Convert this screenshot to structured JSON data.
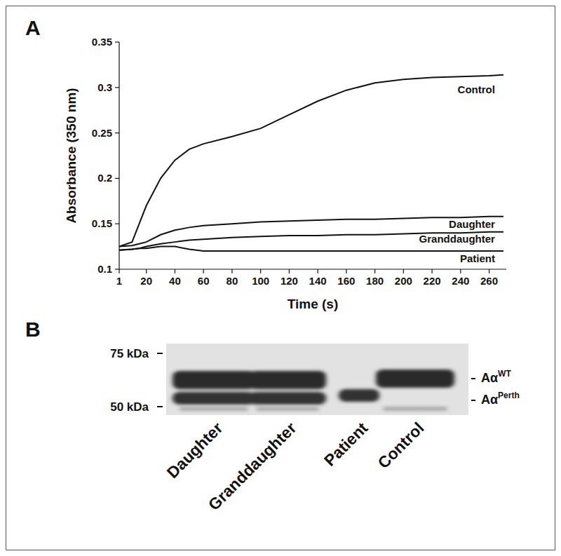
{
  "chart_data": {
    "type": "line",
    "title": "A",
    "x_label": "Time (s)",
    "y_label": "Absorbance (350 nm)",
    "x": [
      1,
      10,
      15,
      20,
      30,
      40,
      50,
      60,
      80,
      100,
      120,
      140,
      160,
      180,
      200,
      220,
      240,
      260,
      270
    ],
    "series": [
      {
        "name": "Control",
        "color": "#111111",
        "values": [
          0.125,
          0.13,
          0.15,
          0.17,
          0.2,
          0.22,
          0.232,
          0.238,
          0.246,
          0.255,
          0.27,
          0.285,
          0.297,
          0.305,
          0.309,
          0.311,
          0.312,
          0.313,
          0.314
        ]
      },
      {
        "name": "Daughter",
        "color": "#111111",
        "values": [
          0.125,
          0.126,
          0.128,
          0.13,
          0.138,
          0.143,
          0.146,
          0.148,
          0.15,
          0.152,
          0.153,
          0.154,
          0.155,
          0.155,
          0.156,
          0.157,
          0.157,
          0.158,
          0.158
        ]
      },
      {
        "name": "Granddaughter",
        "color": "#111111",
        "values": [
          0.121,
          0.122,
          0.123,
          0.125,
          0.128,
          0.13,
          0.132,
          0.133,
          0.135,
          0.136,
          0.137,
          0.137,
          0.138,
          0.138,
          0.139,
          0.14,
          0.14,
          0.141,
          0.141
        ]
      },
      {
        "name": "Patient",
        "color": "#111111",
        "values": [
          0.121,
          0.122,
          0.123,
          0.123,
          0.125,
          0.125,
          0.122,
          0.12,
          0.12,
          0.12,
          0.12,
          0.12,
          0.12,
          0.12,
          0.12,
          0.12,
          0.12,
          0.12,
          0.12
        ]
      }
    ],
    "xlim": [
      1,
      272
    ],
    "xticks": [
      1,
      20,
      40,
      60,
      80,
      100,
      120,
      140,
      160,
      180,
      200,
      220,
      240,
      260
    ],
    "ylim": [
      0.1,
      0.35
    ],
    "yticks": [
      0.1,
      0.15,
      0.2,
      0.25,
      0.3,
      0.35
    ],
    "grid": false
  },
  "blot": {
    "panel": "B",
    "markers": [
      {
        "label": "75 kDa"
      },
      {
        "label": "50 kDa"
      }
    ],
    "lanes": [
      {
        "label": "Daughter"
      },
      {
        "label": "Granddaughter"
      },
      {
        "label": "Patient"
      },
      {
        "label": "Control"
      }
    ],
    "bands": [
      {
        "label": "Aα",
        "superscript": "WT",
        "lanes": [
          0,
          1,
          3
        ]
      },
      {
        "label": "Aα",
        "superscript": "Perth",
        "lanes": [
          0,
          1,
          2
        ]
      }
    ]
  }
}
